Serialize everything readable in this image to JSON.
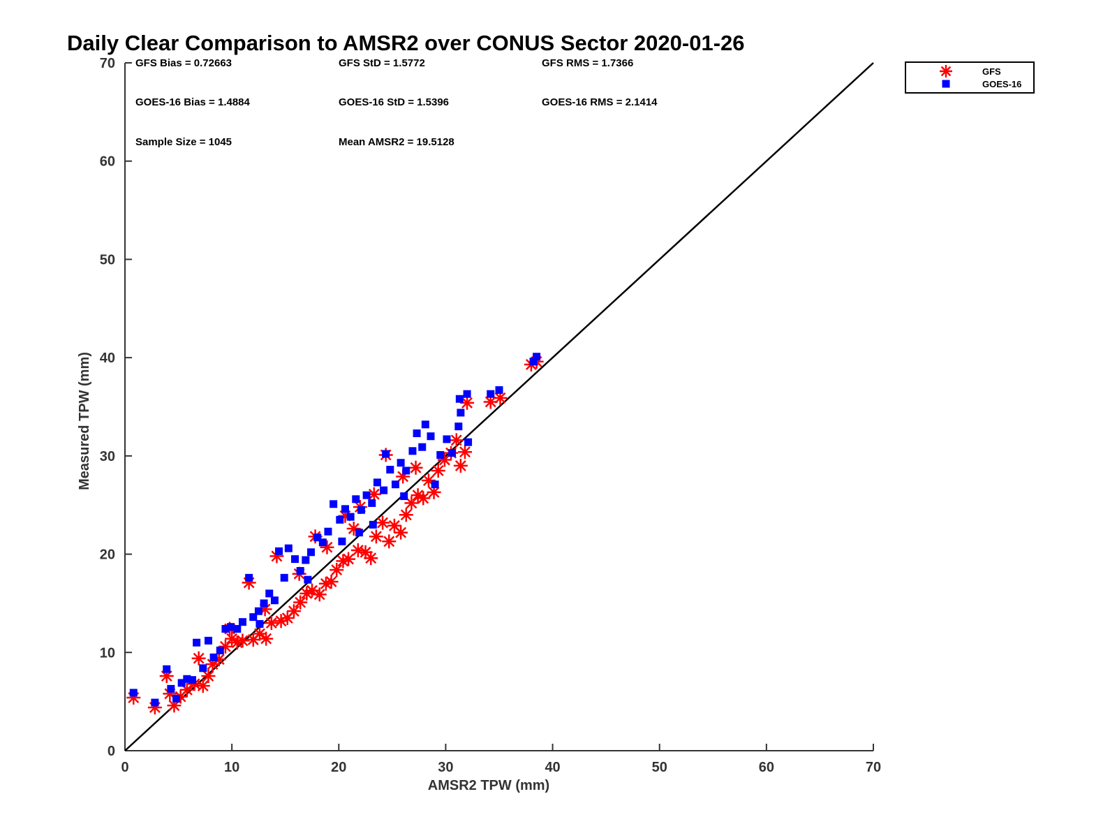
{
  "chart_data": {
    "type": "scatter",
    "title": "Daily Clear Comparison to AMSR2 over CONUS Sector 2020-01-26",
    "xlabel": "AMSR2 TPW (mm)",
    "ylabel": "Measured TPW (mm)",
    "xlim": [
      0,
      70
    ],
    "ylim": [
      0,
      70
    ],
    "xticks": [
      0,
      10,
      20,
      30,
      40,
      50,
      60,
      70
    ],
    "yticks": [
      0,
      10,
      20,
      30,
      40,
      50,
      60,
      70
    ],
    "xtick_labels": [
      "0",
      "10",
      "20",
      "30",
      "40",
      "50",
      "60",
      "70"
    ],
    "ytick_labels": [
      "0",
      "10",
      "20",
      "30",
      "40",
      "50",
      "60",
      "70"
    ],
    "grid": false,
    "legend_position": "top-right, outside plot",
    "reference_line": {
      "type": "one-to-one",
      "from": [
        0,
        0
      ],
      "to": [
        70,
        70
      ]
    },
    "stats": [
      [
        "GFS Bias = 0.72663",
        "GFS StD = 1.5772",
        "GFS RMS = 1.7366"
      ],
      [
        "GOES-16 Bias = 1.4884",
        "GOES-16 StD = 1.5396",
        "GOES-16 RMS = 2.1414"
      ],
      [
        "Sample Size = 1045",
        "Mean AMSR2 = 19.5128",
        ""
      ]
    ],
    "series": [
      {
        "name": "GFS",
        "marker": "asterisk",
        "color": "#ff0000",
        "points": [
          [
            0.8,
            5.4
          ],
          [
            2.8,
            4.4
          ],
          [
            3.9,
            7.6
          ],
          [
            4.2,
            5.8
          ],
          [
            4.6,
            4.6
          ],
          [
            5.2,
            5.5
          ],
          [
            5.8,
            6.2
          ],
          [
            6.5,
            6.8
          ],
          [
            6.9,
            9.4
          ],
          [
            7.3,
            6.6
          ],
          [
            7.8,
            7.6
          ],
          [
            8.2,
            8.8
          ],
          [
            8.8,
            9.3
          ],
          [
            9.4,
            10.6
          ],
          [
            10.0,
            11.4
          ],
          [
            10.5,
            11.0
          ],
          [
            11.0,
            11.2
          ],
          [
            11.6,
            17.1
          ],
          [
            12.0,
            11.3
          ],
          [
            12.6,
            11.9
          ],
          [
            13.2,
            11.4
          ],
          [
            13.7,
            13.0
          ],
          [
            14.2,
            19.8
          ],
          [
            14.6,
            13.2
          ],
          [
            15.2,
            13.5
          ],
          [
            15.8,
            14.2
          ],
          [
            16.4,
            15.1
          ],
          [
            17.0,
            16.0
          ],
          [
            17.5,
            16.3
          ],
          [
            17.8,
            21.8
          ],
          [
            18.2,
            15.9
          ],
          [
            18.8,
            17.0
          ],
          [
            19.3,
            17.2
          ],
          [
            19.8,
            18.4
          ],
          [
            20.4,
            19.3
          ],
          [
            20.9,
            19.5
          ],
          [
            21.4,
            22.6
          ],
          [
            21.8,
            20.4
          ],
          [
            22.5,
            20.2
          ],
          [
            23.0,
            19.6
          ],
          [
            23.5,
            21.8
          ],
          [
            24.1,
            23.2
          ],
          [
            24.4,
            30.1
          ],
          [
            24.7,
            21.3
          ],
          [
            25.2,
            22.9
          ],
          [
            25.8,
            22.2
          ],
          [
            26.3,
            24.0
          ],
          [
            26.8,
            25.2
          ],
          [
            27.4,
            26.0
          ],
          [
            27.9,
            25.7
          ],
          [
            28.4,
            27.5
          ],
          [
            28.9,
            26.3
          ],
          [
            29.3,
            28.5
          ],
          [
            29.9,
            29.6
          ],
          [
            30.5,
            30.3
          ],
          [
            31.0,
            31.6
          ],
          [
            31.4,
            29.0
          ],
          [
            31.8,
            30.4
          ],
          [
            32.0,
            35.4
          ],
          [
            34.2,
            35.5
          ],
          [
            35.1,
            35.9
          ],
          [
            38.0,
            39.3
          ],
          [
            38.5,
            39.6
          ],
          [
            20.6,
            23.9
          ],
          [
            22.0,
            24.8
          ],
          [
            23.3,
            26.1
          ],
          [
            16.3,
            18.0
          ],
          [
            13.1,
            14.4
          ],
          [
            9.8,
            12.4
          ],
          [
            26.0,
            27.9
          ],
          [
            27.2,
            28.8
          ],
          [
            18.9,
            20.7
          ]
        ]
      },
      {
        "name": "GOES-16",
        "marker": "square",
        "color": "#0000ff",
        "points": [
          [
            0.8,
            5.9
          ],
          [
            2.8,
            4.9
          ],
          [
            3.9,
            8.3
          ],
          [
            4.3,
            6.3
          ],
          [
            4.8,
            5.3
          ],
          [
            5.3,
            6.9
          ],
          [
            5.8,
            7.3
          ],
          [
            6.3,
            7.2
          ],
          [
            6.7,
            11.0
          ],
          [
            7.3,
            8.4
          ],
          [
            7.8,
            11.2
          ],
          [
            8.3,
            9.5
          ],
          [
            8.9,
            10.2
          ],
          [
            9.4,
            12.4
          ],
          [
            9.9,
            12.6
          ],
          [
            10.5,
            12.4
          ],
          [
            11.0,
            13.1
          ],
          [
            11.6,
            17.6
          ],
          [
            12.0,
            13.6
          ],
          [
            12.5,
            14.2
          ],
          [
            13.0,
            15.0
          ],
          [
            13.5,
            16.0
          ],
          [
            14.0,
            15.3
          ],
          [
            14.4,
            20.3
          ],
          [
            14.9,
            17.6
          ],
          [
            15.3,
            20.6
          ],
          [
            15.9,
            19.5
          ],
          [
            16.4,
            18.3
          ],
          [
            16.9,
            19.4
          ],
          [
            17.4,
            20.2
          ],
          [
            18.0,
            21.7
          ],
          [
            18.5,
            21.2
          ],
          [
            19.0,
            22.3
          ],
          [
            19.5,
            25.1
          ],
          [
            20.1,
            23.5
          ],
          [
            20.6,
            24.6
          ],
          [
            21.1,
            23.8
          ],
          [
            21.6,
            25.6
          ],
          [
            22.1,
            24.5
          ],
          [
            22.6,
            26.0
          ],
          [
            23.1,
            25.2
          ],
          [
            23.6,
            27.3
          ],
          [
            24.2,
            26.5
          ],
          [
            24.4,
            30.2
          ],
          [
            24.8,
            28.6
          ],
          [
            25.3,
            27.1
          ],
          [
            25.8,
            29.3
          ],
          [
            26.3,
            28.5
          ],
          [
            26.9,
            30.5
          ],
          [
            27.3,
            32.3
          ],
          [
            27.8,
            30.9
          ],
          [
            28.1,
            33.2
          ],
          [
            28.6,
            32.0
          ],
          [
            29.0,
            27.1
          ],
          [
            29.5,
            30.1
          ],
          [
            30.1,
            31.7
          ],
          [
            30.6,
            30.3
          ],
          [
            31.2,
            33.0
          ],
          [
            31.4,
            34.4
          ],
          [
            31.3,
            35.8
          ],
          [
            32.0,
            36.3
          ],
          [
            32.1,
            31.4
          ],
          [
            34.2,
            36.3
          ],
          [
            35.0,
            36.7
          ],
          [
            38.2,
            39.6
          ],
          [
            38.5,
            40.1
          ],
          [
            20.3,
            21.3
          ],
          [
            21.9,
            22.2
          ],
          [
            17.1,
            17.4
          ],
          [
            12.6,
            12.9
          ],
          [
            26.1,
            25.9
          ],
          [
            23.2,
            23.0
          ]
        ]
      }
    ]
  }
}
